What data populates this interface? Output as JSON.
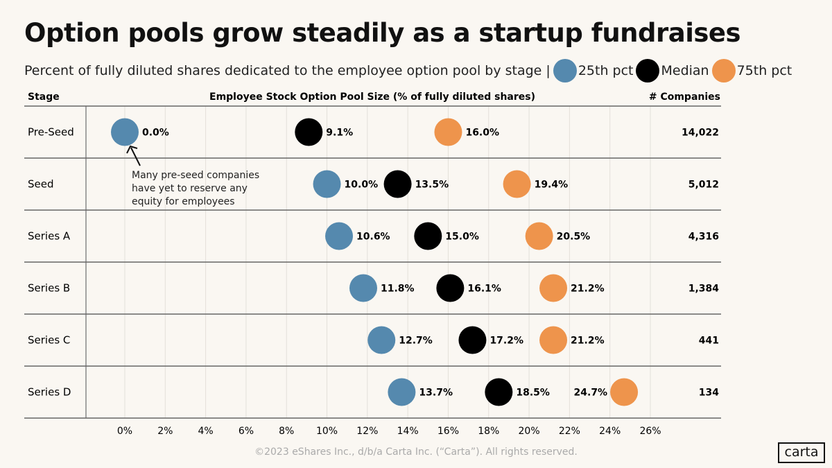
{
  "title": "Option pools grow steadily as a startup fundraises",
  "subtitle": "Percent of fully diluted shares dedicated to the employee option pool by stage |",
  "footer": "©2023 eShares Inc., d/b/a Carta Inc. (“Carta”). All rights reserved.",
  "logo": "carta",
  "chart_data": {
    "type": "scatter",
    "column_headers": {
      "stage": "Stage",
      "value": "Employee Stock Option Pool Size (% of fully diluted shares)",
      "companies": "# Companies"
    },
    "categories": [
      "Pre-Seed",
      "Seed",
      "Series A",
      "Series B",
      "Series C",
      "Series D"
    ],
    "series": [
      {
        "name": "25th pct",
        "color": "#5589ae",
        "values": [
          0.0,
          10.0,
          10.6,
          11.8,
          12.7,
          13.7
        ],
        "labels": [
          "0.0%",
          "10.0%",
          "10.6%",
          "11.8%",
          "12.7%",
          "13.7%"
        ]
      },
      {
        "name": "Median",
        "color": "#000000",
        "values": [
          9.1,
          13.5,
          15.0,
          16.1,
          17.2,
          18.5
        ],
        "labels": [
          "9.1%",
          "13.5%",
          "15.0%",
          "16.1%",
          "17.2%",
          "18.5%"
        ]
      },
      {
        "name": "75th pct",
        "color": "#ee944c",
        "values": [
          16.0,
          19.4,
          20.5,
          21.2,
          21.2,
          24.7
        ],
        "labels": [
          "16.0%",
          "19.4%",
          "20.5%",
          "21.2%",
          "21.2%",
          "24.7%"
        ]
      }
    ],
    "companies": [
      "14,022",
      "5,012",
      "4,316",
      "1,384",
      "441",
      "134"
    ],
    "x_ticks": [
      "0%",
      "2%",
      "4%",
      "6%",
      "8%",
      "10%",
      "12%",
      "14%",
      "16%",
      "18%",
      "20%",
      "22%",
      "24%",
      "26%"
    ],
    "xlim": [
      0,
      26
    ],
    "grid": true,
    "legend": "top",
    "annotation": [
      "Many pre-seed companies",
      "have yet to reserve any",
      "equity for employees"
    ]
  }
}
